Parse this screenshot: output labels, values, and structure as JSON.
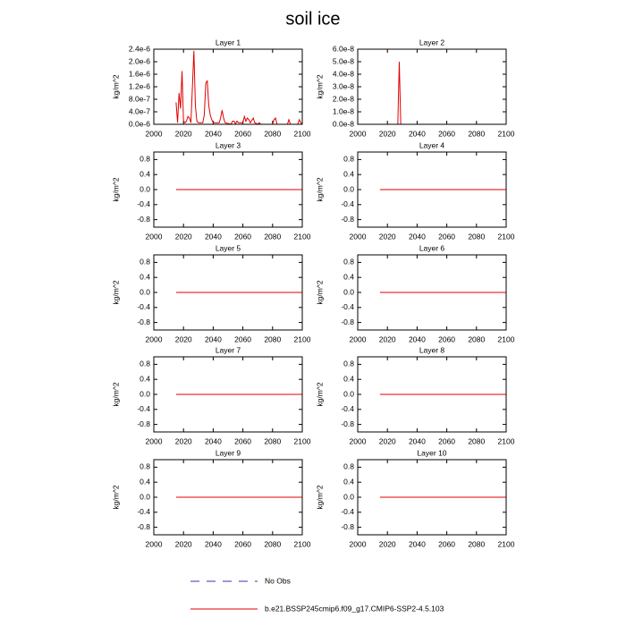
{
  "title": "soil ice",
  "legend": [
    {
      "name": "No Obs",
      "color": "#3030c0",
      "dashed": true
    },
    {
      "name": "b.e21.BSSP245cmip6.f09_g17.CMIP6-SSP2-4.5.103",
      "color": "#e00000",
      "dashed": false
    }
  ],
  "chart_data": [
    {
      "type": "line",
      "title": "Layer 1",
      "ylabel": "kg/m^2",
      "xlim": [
        2000,
        2100
      ],
      "xticks": [
        2000,
        2020,
        2040,
        2060,
        2080,
        2100
      ],
      "ylim": [
        0,
        2.4e-06
      ],
      "yticks": [
        {
          "value": 0,
          "label": "0.0e-6"
        },
        {
          "value": 4e-07,
          "label": "4.0e-7"
        },
        {
          "value": 8e-07,
          "label": "8.0e-7"
        },
        {
          "value": 1.2e-06,
          "label": "1.2e-6"
        },
        {
          "value": 1.6e-06,
          "label": "1.6e-6"
        },
        {
          "value": 2e-06,
          "label": "2.0e-6"
        },
        {
          "value": 2.4e-06,
          "label": "2.4e-6"
        }
      ],
      "series": [
        {
          "color": "#e00000",
          "x": [
            2015,
            2016,
            2017,
            2018,
            2019,
            2020,
            2021,
            2022,
            2023,
            2024,
            2025,
            2026,
            2027,
            2028,
            2029,
            2030,
            2033,
            2034,
            2035,
            2036,
            2037,
            2038,
            2039,
            2040,
            2044,
            2045,
            2046,
            2047,
            2048,
            2052,
            2053,
            2054,
            2055,
            2056,
            2057,
            2060,
            2061,
            2062,
            2063,
            2064,
            2065,
            2067,
            2068,
            2070,
            2071,
            2072,
            2080,
            2081,
            2082,
            2083,
            2090,
            2091,
            2092,
            2097,
            2098,
            2099,
            2100
          ],
          "values": [
            7e-07,
            5e-08,
            1e-06,
            5e-07,
            1.7e-06,
            1e-07,
            5e-08,
            1e-07,
            2.5e-07,
            2e-07,
            5e-08,
            1.2e-06,
            2.35e-06,
            6e-07,
            1e-07,
            5e-08,
            5e-08,
            3e-07,
            1.3e-06,
            1.4e-06,
            6e-07,
            3e-07,
            1.5e-07,
            5e-08,
            5e-08,
            2e-07,
            4.5e-07,
            2e-07,
            5e-08,
            0,
            1e-07,
            1e-07,
            2e-08,
            1e-07,
            5e-08,
            5e-08,
            2.5e-07,
            1e-07,
            2e-07,
            1.5e-07,
            5e-08,
            2e-07,
            5e-08,
            0,
            5e-08,
            0,
            0,
            1.5e-07,
            2e-07,
            0,
            0,
            1.5e-07,
            0,
            0,
            1.5e-07,
            5e-08,
            0
          ]
        }
      ]
    },
    {
      "type": "line",
      "title": "Layer 2",
      "ylabel": "kg/m^2",
      "xlim": [
        2000,
        2100
      ],
      "xticks": [
        2000,
        2020,
        2040,
        2060,
        2080,
        2100
      ],
      "ylim": [
        0,
        6e-08
      ],
      "yticks": [
        {
          "value": 0,
          "label": "0.0e-8"
        },
        {
          "value": 1e-08,
          "label": "1.0e-8"
        },
        {
          "value": 2e-08,
          "label": "2.0e-8"
        },
        {
          "value": 3e-08,
          "label": "3.0e-8"
        },
        {
          "value": 4e-08,
          "label": "4.0e-8"
        },
        {
          "value": 5e-08,
          "label": "5.0e-8"
        },
        {
          "value": 6e-08,
          "label": "6.0e-8"
        }
      ],
      "series": [
        {
          "color": "#e00000",
          "x": [
            2015,
            2027,
            2028,
            2029,
            2100
          ],
          "values": [
            0,
            0,
            5e-08,
            0,
            0
          ]
        }
      ]
    },
    {
      "type": "line",
      "title": "Layer 3",
      "ylabel": "kg/m^2",
      "xlim": [
        2000,
        2100
      ],
      "xticks": [
        2000,
        2020,
        2040,
        2060,
        2080,
        2100
      ],
      "ylim": [
        -1,
        1
      ],
      "yticks": [
        -0.8,
        -0.4,
        {
          "value": 0,
          "label": "0.0"
        },
        0.4,
        0.8
      ],
      "series": [
        {
          "color": "#e00000",
          "x": [
            2015,
            2100
          ],
          "values": [
            0,
            0
          ]
        }
      ]
    },
    {
      "type": "line",
      "title": "Layer 4",
      "ylabel": "kg/m^2",
      "xlim": [
        2000,
        2100
      ],
      "xticks": [
        2000,
        2020,
        2040,
        2060,
        2080,
        2100
      ],
      "ylim": [
        -1,
        1
      ],
      "yticks": [
        -0.8,
        -0.4,
        {
          "value": 0,
          "label": "0.0"
        },
        0.4,
        0.8
      ],
      "series": [
        {
          "color": "#e00000",
          "x": [
            2015,
            2100
          ],
          "values": [
            0,
            0
          ]
        }
      ]
    },
    {
      "type": "line",
      "title": "Layer 5",
      "ylabel": "kg/m^2",
      "xlim": [
        2000,
        2100
      ],
      "xticks": [
        2000,
        2020,
        2040,
        2060,
        2080,
        2100
      ],
      "ylim": [
        -1,
        1
      ],
      "yticks": [
        -0.8,
        -0.4,
        {
          "value": 0,
          "label": "0.0"
        },
        0.4,
        0.8
      ],
      "series": [
        {
          "color": "#e00000",
          "x": [
            2015,
            2100
          ],
          "values": [
            0,
            0
          ]
        }
      ]
    },
    {
      "type": "line",
      "title": "Layer 6",
      "ylabel": "kg/m^2",
      "xlim": [
        2000,
        2100
      ],
      "xticks": [
        2000,
        2020,
        2040,
        2060,
        2080,
        2100
      ],
      "ylim": [
        -1,
        1
      ],
      "yticks": [
        -0.8,
        -0.4,
        {
          "value": 0,
          "label": "0.0"
        },
        0.4,
        0.8
      ],
      "series": [
        {
          "color": "#e00000",
          "x": [
            2015,
            2100
          ],
          "values": [
            0,
            0
          ]
        }
      ]
    },
    {
      "type": "line",
      "title": "Layer 7",
      "ylabel": "kg/m^2",
      "xlim": [
        2000,
        2100
      ],
      "xticks": [
        2000,
        2020,
        2040,
        2060,
        2080,
        2100
      ],
      "ylim": [
        -1,
        1
      ],
      "yticks": [
        -0.8,
        -0.4,
        {
          "value": 0,
          "label": "0.0"
        },
        0.4,
        0.8
      ],
      "series": [
        {
          "color": "#e00000",
          "x": [
            2015,
            2100
          ],
          "values": [
            0,
            0
          ]
        }
      ]
    },
    {
      "type": "line",
      "title": "Layer 8",
      "ylabel": "kg/m^2",
      "xlim": [
        2000,
        2100
      ],
      "xticks": [
        2000,
        2020,
        2040,
        2060,
        2080,
        2100
      ],
      "ylim": [
        -1,
        1
      ],
      "yticks": [
        -0.8,
        -0.4,
        {
          "value": 0,
          "label": "0.0"
        },
        0.4,
        0.8
      ],
      "series": [
        {
          "color": "#e00000",
          "x": [
            2015,
            2100
          ],
          "values": [
            0,
            0
          ]
        }
      ]
    },
    {
      "type": "line",
      "title": "Layer 9",
      "ylabel": "kg/m^2",
      "xlim": [
        2000,
        2100
      ],
      "xticks": [
        2000,
        2020,
        2040,
        2060,
        2080,
        2100
      ],
      "ylim": [
        -1,
        1
      ],
      "yticks": [
        -0.8,
        -0.4,
        {
          "value": 0,
          "label": "0.0"
        },
        0.4,
        0.8
      ],
      "series": [
        {
          "color": "#e00000",
          "x": [
            2015,
            2100
          ],
          "values": [
            0,
            0
          ]
        }
      ]
    },
    {
      "type": "line",
      "title": "Layer 10",
      "ylabel": "kg/m^2",
      "xlim": [
        2000,
        2100
      ],
      "xticks": [
        2000,
        2020,
        2040,
        2060,
        2080,
        2100
      ],
      "ylim": [
        -1,
        1
      ],
      "yticks": [
        -0.8,
        -0.4,
        {
          "value": 0,
          "label": "0.0"
        },
        0.4,
        0.8
      ],
      "series": [
        {
          "color": "#e00000",
          "x": [
            2015,
            2100
          ],
          "values": [
            0,
            0
          ]
        }
      ]
    }
  ]
}
